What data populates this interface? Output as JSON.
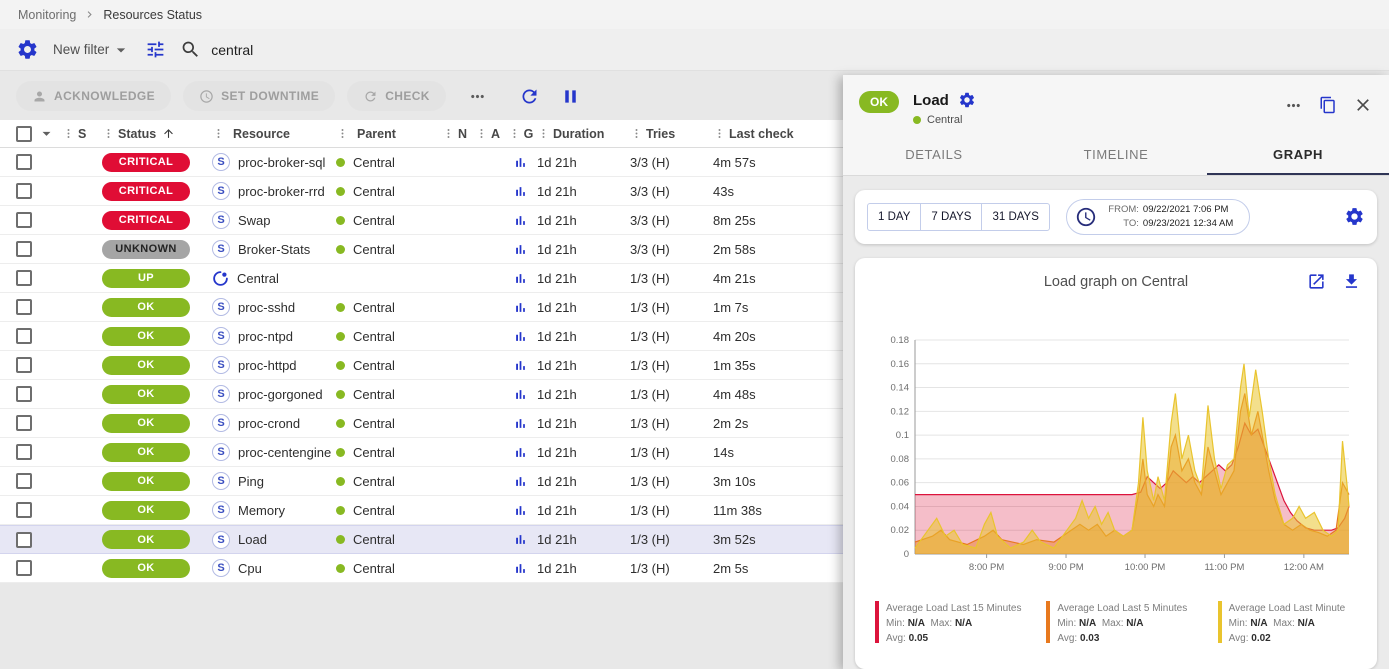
{
  "breadcrumb": {
    "section": "Monitoring",
    "page": "Resources Status"
  },
  "filter_bar": {
    "new_filter_label": "New filter",
    "search_value": "central"
  },
  "toolbar": {
    "acknowledge": "ACKNOWLEDGE",
    "set_downtime": "SET DOWNTIME",
    "check": "CHECK"
  },
  "table": {
    "columns": [
      {
        "label": "S",
        "sorted": false
      },
      {
        "label": "Status",
        "sorted": true
      },
      {
        "label": "Resource",
        "sorted": false
      },
      {
        "label": "Parent",
        "sorted": false
      },
      {
        "label": "N",
        "sorted": false
      },
      {
        "label": "A",
        "sorted": false
      },
      {
        "label": "G",
        "sorted": false
      },
      {
        "label": "Duration",
        "sorted": false
      },
      {
        "label": "Tries",
        "sorted": false
      },
      {
        "label": "Last check",
        "sorted": false
      }
    ],
    "rows": [
      {
        "status": "CRITICAL",
        "icon": "S",
        "resource": "proc-broker-sql",
        "parent": "Central",
        "graph": true,
        "duration": "1d 21h",
        "tries": "3/3 (H)",
        "last_check": "4m 57s",
        "selected": false
      },
      {
        "status": "CRITICAL",
        "icon": "S",
        "resource": "proc-broker-rrd",
        "parent": "Central",
        "graph": true,
        "duration": "1d 21h",
        "tries": "3/3 (H)",
        "last_check": "43s",
        "selected": false
      },
      {
        "status": "CRITICAL",
        "icon": "S",
        "resource": "Swap",
        "parent": "Central",
        "graph": true,
        "duration": "1d 21h",
        "tries": "3/3 (H)",
        "last_check": "8m 25s",
        "selected": false
      },
      {
        "status": "UNKNOWN",
        "icon": "S",
        "resource": "Broker-Stats",
        "parent": "Central",
        "graph": true,
        "duration": "1d 21h",
        "tries": "3/3 (H)",
        "last_check": "2m 58s",
        "selected": false
      },
      {
        "status": "UP",
        "icon": "centreon",
        "resource": "Central",
        "parent": "",
        "graph": true,
        "duration": "1d 21h",
        "tries": "1/3 (H)",
        "last_check": "4m 21s",
        "selected": false
      },
      {
        "status": "OK",
        "icon": "S",
        "resource": "proc-sshd",
        "parent": "Central",
        "graph": true,
        "duration": "1d 21h",
        "tries": "1/3 (H)",
        "last_check": "1m 7s",
        "selected": false
      },
      {
        "status": "OK",
        "icon": "S",
        "resource": "proc-ntpd",
        "parent": "Central",
        "graph": true,
        "duration": "1d 21h",
        "tries": "1/3 (H)",
        "last_check": "4m 20s",
        "selected": false
      },
      {
        "status": "OK",
        "icon": "S",
        "resource": "proc-httpd",
        "parent": "Central",
        "graph": true,
        "duration": "1d 21h",
        "tries": "1/3 (H)",
        "last_check": "1m 35s",
        "selected": false
      },
      {
        "status": "OK",
        "icon": "S",
        "resource": "proc-gorgoned",
        "parent": "Central",
        "graph": true,
        "duration": "1d 21h",
        "tries": "1/3 (H)",
        "last_check": "4m 48s",
        "selected": false
      },
      {
        "status": "OK",
        "icon": "S",
        "resource": "proc-crond",
        "parent": "Central",
        "graph": true,
        "duration": "1d 21h",
        "tries": "1/3 (H)",
        "last_check": "2m 2s",
        "selected": false
      },
      {
        "status": "OK",
        "icon": "S",
        "resource": "proc-centengine",
        "parent": "Central",
        "graph": true,
        "duration": "1d 21h",
        "tries": "1/3 (H)",
        "last_check": "14s",
        "selected": false
      },
      {
        "status": "OK",
        "icon": "S",
        "resource": "Ping",
        "parent": "Central",
        "graph": true,
        "duration": "1d 21h",
        "tries": "1/3 (H)",
        "last_check": "3m 10s",
        "selected": false
      },
      {
        "status": "OK",
        "icon": "S",
        "resource": "Memory",
        "parent": "Central",
        "graph": true,
        "duration": "1d 21h",
        "tries": "1/3 (H)",
        "last_check": "11m 38s",
        "selected": false
      },
      {
        "status": "OK",
        "icon": "S",
        "resource": "Load",
        "parent": "Central",
        "graph": true,
        "duration": "1d 21h",
        "tries": "1/3 (H)",
        "last_check": "3m 52s",
        "selected": true
      },
      {
        "status": "OK",
        "icon": "S",
        "resource": "Cpu",
        "parent": "Central",
        "graph": true,
        "duration": "1d 21h",
        "tries": "1/3 (H)",
        "last_check": "2m 5s",
        "selected": false
      }
    ]
  },
  "status_colors": {
    "CRITICAL": {
      "bg": "#e00d35",
      "fg": "#ffffff"
    },
    "UNKNOWN": {
      "bg": "#a5a5a5",
      "fg": "#232323"
    },
    "UP": {
      "bg": "#88b922",
      "fg": "#ffffff"
    },
    "OK": {
      "bg": "#88b922",
      "fg": "#ffffff"
    }
  },
  "panel": {
    "status": "OK",
    "title": "Load",
    "parent": "Central",
    "tabs": [
      {
        "label": "DETAILS",
        "active": false
      },
      {
        "label": "TIMELINE",
        "active": false
      },
      {
        "label": "GRAPH",
        "active": true
      }
    ],
    "time_buttons": [
      "1 DAY",
      "7 DAYS",
      "31 DAYS"
    ],
    "from_label": "FROM:",
    "from_value": "09/22/2021 7:06 PM",
    "to_label": "TO:",
    "to_value": "09/23/2021 12:34 AM",
    "graph_title": "Load graph on Central"
  },
  "legend_labels": {
    "min": "Min:",
    "max": "Max:",
    "avg": "Avg:"
  },
  "chart_data": {
    "type": "area",
    "title": "Load graph on Central",
    "xlabel": "",
    "ylabel": "",
    "ylim": [
      0,
      0.18
    ],
    "grid": true,
    "legend_position": "bottom",
    "y_ticks": [
      {
        "v": 0,
        "label": "0"
      },
      {
        "v": 0.02,
        "label": "0.02"
      },
      {
        "v": 0.04,
        "label": "0.04"
      },
      {
        "v": 0.06,
        "label": "0.06"
      },
      {
        "v": 0.08,
        "label": "0.08"
      },
      {
        "v": 0.1,
        "label": "0.1"
      },
      {
        "v": 0.12,
        "label": "0.12"
      },
      {
        "v": 0.14,
        "label": "0.14"
      },
      {
        "v": 0.16,
        "label": "0.16"
      },
      {
        "v": 0.18,
        "label": "0.18"
      }
    ],
    "x_ticks": [
      {
        "f": 0.165,
        "label": "8:00 PM"
      },
      {
        "f": 0.348,
        "label": "9:00 PM"
      },
      {
        "f": 0.53,
        "label": "10:00 PM"
      },
      {
        "f": 0.713,
        "label": "11:00 PM"
      },
      {
        "f": 0.896,
        "label": "12:00 AM"
      }
    ],
    "series": [
      {
        "name": "Average Load Last 15 Minutes",
        "color": "#dc143c",
        "fill_opacity": 0.28,
        "min": "N/A",
        "max": "N/A",
        "avg": "0.05",
        "points": [
          [
            0,
            0.05
          ],
          [
            0.1,
            0.05
          ],
          [
            0.2,
            0.05
          ],
          [
            0.3,
            0.05
          ],
          [
            0.4,
            0.05
          ],
          [
            0.45,
            0.05
          ],
          [
            0.5,
            0.05
          ],
          [
            0.52,
            0.052
          ],
          [
            0.535,
            0.065
          ],
          [
            0.55,
            0.06
          ],
          [
            0.565,
            0.055
          ],
          [
            0.58,
            0.06
          ],
          [
            0.595,
            0.07
          ],
          [
            0.61,
            0.065
          ],
          [
            0.625,
            0.06
          ],
          [
            0.64,
            0.065
          ],
          [
            0.655,
            0.06
          ],
          [
            0.67,
            0.065
          ],
          [
            0.685,
            0.07
          ],
          [
            0.7,
            0.075
          ],
          [
            0.715,
            0.07
          ],
          [
            0.73,
            0.075
          ],
          [
            0.745,
            0.09
          ],
          [
            0.76,
            0.11
          ],
          [
            0.775,
            0.1
          ],
          [
            0.79,
            0.105
          ],
          [
            0.805,
            0.09
          ],
          [
            0.82,
            0.075
          ],
          [
            0.835,
            0.06
          ],
          [
            0.85,
            0.045
          ],
          [
            0.865,
            0.035
          ],
          [
            0.88,
            0.028
          ],
          [
            0.9,
            0.022
          ],
          [
            0.92,
            0.02
          ],
          [
            0.94,
            0.02
          ],
          [
            0.96,
            0.02
          ],
          [
            0.975,
            0.022
          ],
          [
            0.99,
            0.03
          ],
          [
            1,
            0.04
          ]
        ]
      },
      {
        "name": "Average Load Last 5 Minutes",
        "color": "#e8791e",
        "fill_opacity": 0.45,
        "min": "N/A",
        "max": "N/A",
        "avg": "0.03",
        "points": [
          [
            0,
            0.01
          ],
          [
            0.04,
            0.015
          ],
          [
            0.06,
            0.02
          ],
          [
            0.08,
            0.012
          ],
          [
            0.12,
            0.008
          ],
          [
            0.16,
            0.015
          ],
          [
            0.18,
            0.02
          ],
          [
            0.2,
            0.012
          ],
          [
            0.25,
            0.008
          ],
          [
            0.28,
            0.012
          ],
          [
            0.32,
            0.01
          ],
          [
            0.36,
            0.02
          ],
          [
            0.38,
            0.025
          ],
          [
            0.4,
            0.02
          ],
          [
            0.42,
            0.025
          ],
          [
            0.44,
            0.015
          ],
          [
            0.46,
            0.02
          ],
          [
            0.48,
            0.015
          ],
          [
            0.5,
            0.02
          ],
          [
            0.515,
            0.05
          ],
          [
            0.525,
            0.08
          ],
          [
            0.535,
            0.05
          ],
          [
            0.55,
            0.04
          ],
          [
            0.56,
            0.05
          ],
          [
            0.575,
            0.04
          ],
          [
            0.59,
            0.09
          ],
          [
            0.6,
            0.1
          ],
          [
            0.615,
            0.07
          ],
          [
            0.63,
            0.08
          ],
          [
            0.645,
            0.06
          ],
          [
            0.66,
            0.05
          ],
          [
            0.675,
            0.09
          ],
          [
            0.69,
            0.07
          ],
          [
            0.705,
            0.05
          ],
          [
            0.72,
            0.06
          ],
          [
            0.735,
            0.07
          ],
          [
            0.75,
            0.12
          ],
          [
            0.76,
            0.135
          ],
          [
            0.775,
            0.1
          ],
          [
            0.79,
            0.12
          ],
          [
            0.8,
            0.1
          ],
          [
            0.815,
            0.07
          ],
          [
            0.83,
            0.045
          ],
          [
            0.85,
            0.025
          ],
          [
            0.87,
            0.02
          ],
          [
            0.89,
            0.025
          ],
          [
            0.91,
            0.02
          ],
          [
            0.93,
            0.018
          ],
          [
            0.95,
            0.015
          ],
          [
            0.97,
            0.02
          ],
          [
            0.985,
            0.06
          ],
          [
            1,
            0.05
          ]
        ]
      },
      {
        "name": "Average Load Last Minute",
        "color": "#e9c42e",
        "fill_opacity": 0.55,
        "min": "N/A",
        "max": "N/A",
        "avg": "0.02",
        "points": [
          [
            0,
            0.005
          ],
          [
            0.03,
            0.02
          ],
          [
            0.05,
            0.03
          ],
          [
            0.07,
            0.015
          ],
          [
            0.09,
            0.02
          ],
          [
            0.11,
            0.008
          ],
          [
            0.14,
            0.005
          ],
          [
            0.16,
            0.025
          ],
          [
            0.175,
            0.035
          ],
          [
            0.19,
            0.015
          ],
          [
            0.22,
            0.005
          ],
          [
            0.25,
            0.01
          ],
          [
            0.27,
            0.02
          ],
          [
            0.29,
            0.01
          ],
          [
            0.32,
            0.005
          ],
          [
            0.35,
            0.02
          ],
          [
            0.37,
            0.03
          ],
          [
            0.385,
            0.045
          ],
          [
            0.4,
            0.03
          ],
          [
            0.415,
            0.04
          ],
          [
            0.43,
            0.025
          ],
          [
            0.445,
            0.035
          ],
          [
            0.46,
            0.02
          ],
          [
            0.48,
            0.015
          ],
          [
            0.5,
            0.02
          ],
          [
            0.515,
            0.06
          ],
          [
            0.525,
            0.115
          ],
          [
            0.535,
            0.07
          ],
          [
            0.55,
            0.045
          ],
          [
            0.56,
            0.065
          ],
          [
            0.575,
            0.045
          ],
          [
            0.59,
            0.11
          ],
          [
            0.6,
            0.135
          ],
          [
            0.615,
            0.08
          ],
          [
            0.63,
            0.1
          ],
          [
            0.645,
            0.07
          ],
          [
            0.66,
            0.055
          ],
          [
            0.675,
            0.125
          ],
          [
            0.69,
            0.08
          ],
          [
            0.705,
            0.055
          ],
          [
            0.72,
            0.075
          ],
          [
            0.735,
            0.08
          ],
          [
            0.75,
            0.14
          ],
          [
            0.758,
            0.16
          ],
          [
            0.77,
            0.115
          ],
          [
            0.785,
            0.155
          ],
          [
            0.8,
            0.12
          ],
          [
            0.815,
            0.08
          ],
          [
            0.83,
            0.05
          ],
          [
            0.85,
            0.025
          ],
          [
            0.87,
            0.03
          ],
          [
            0.885,
            0.04
          ],
          [
            0.9,
            0.03
          ],
          [
            0.92,
            0.035
          ],
          [
            0.94,
            0.02
          ],
          [
            0.96,
            0.015
          ],
          [
            0.975,
            0.02
          ],
          [
            0.985,
            0.095
          ],
          [
            0.995,
            0.06
          ],
          [
            1,
            0.04
          ]
        ]
      }
    ]
  }
}
